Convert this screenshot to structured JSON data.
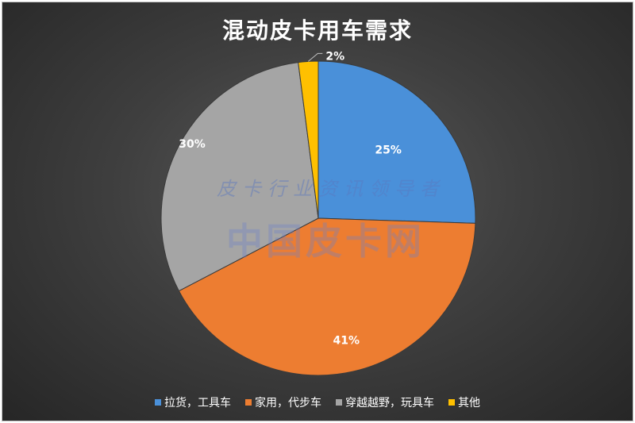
{
  "chart_data": {
    "type": "pie",
    "title": "混动皮卡用车需求",
    "categories": [
      "拉货，工具车",
      "家用，代步车",
      "穿越越野，玩具车",
      "其他"
    ],
    "values": [
      25,
      41,
      30,
      2
    ],
    "labels": [
      "25%",
      "41%",
      "30%",
      "2%"
    ],
    "colors": [
      "#4a90d9",
      "#ed7d31",
      "#a5a5a5",
      "#ffc000"
    ],
    "legend_position": "bottom"
  },
  "watermark": {
    "line1": "皮卡行业资讯领导者",
    "line2": "中国皮卡网"
  }
}
